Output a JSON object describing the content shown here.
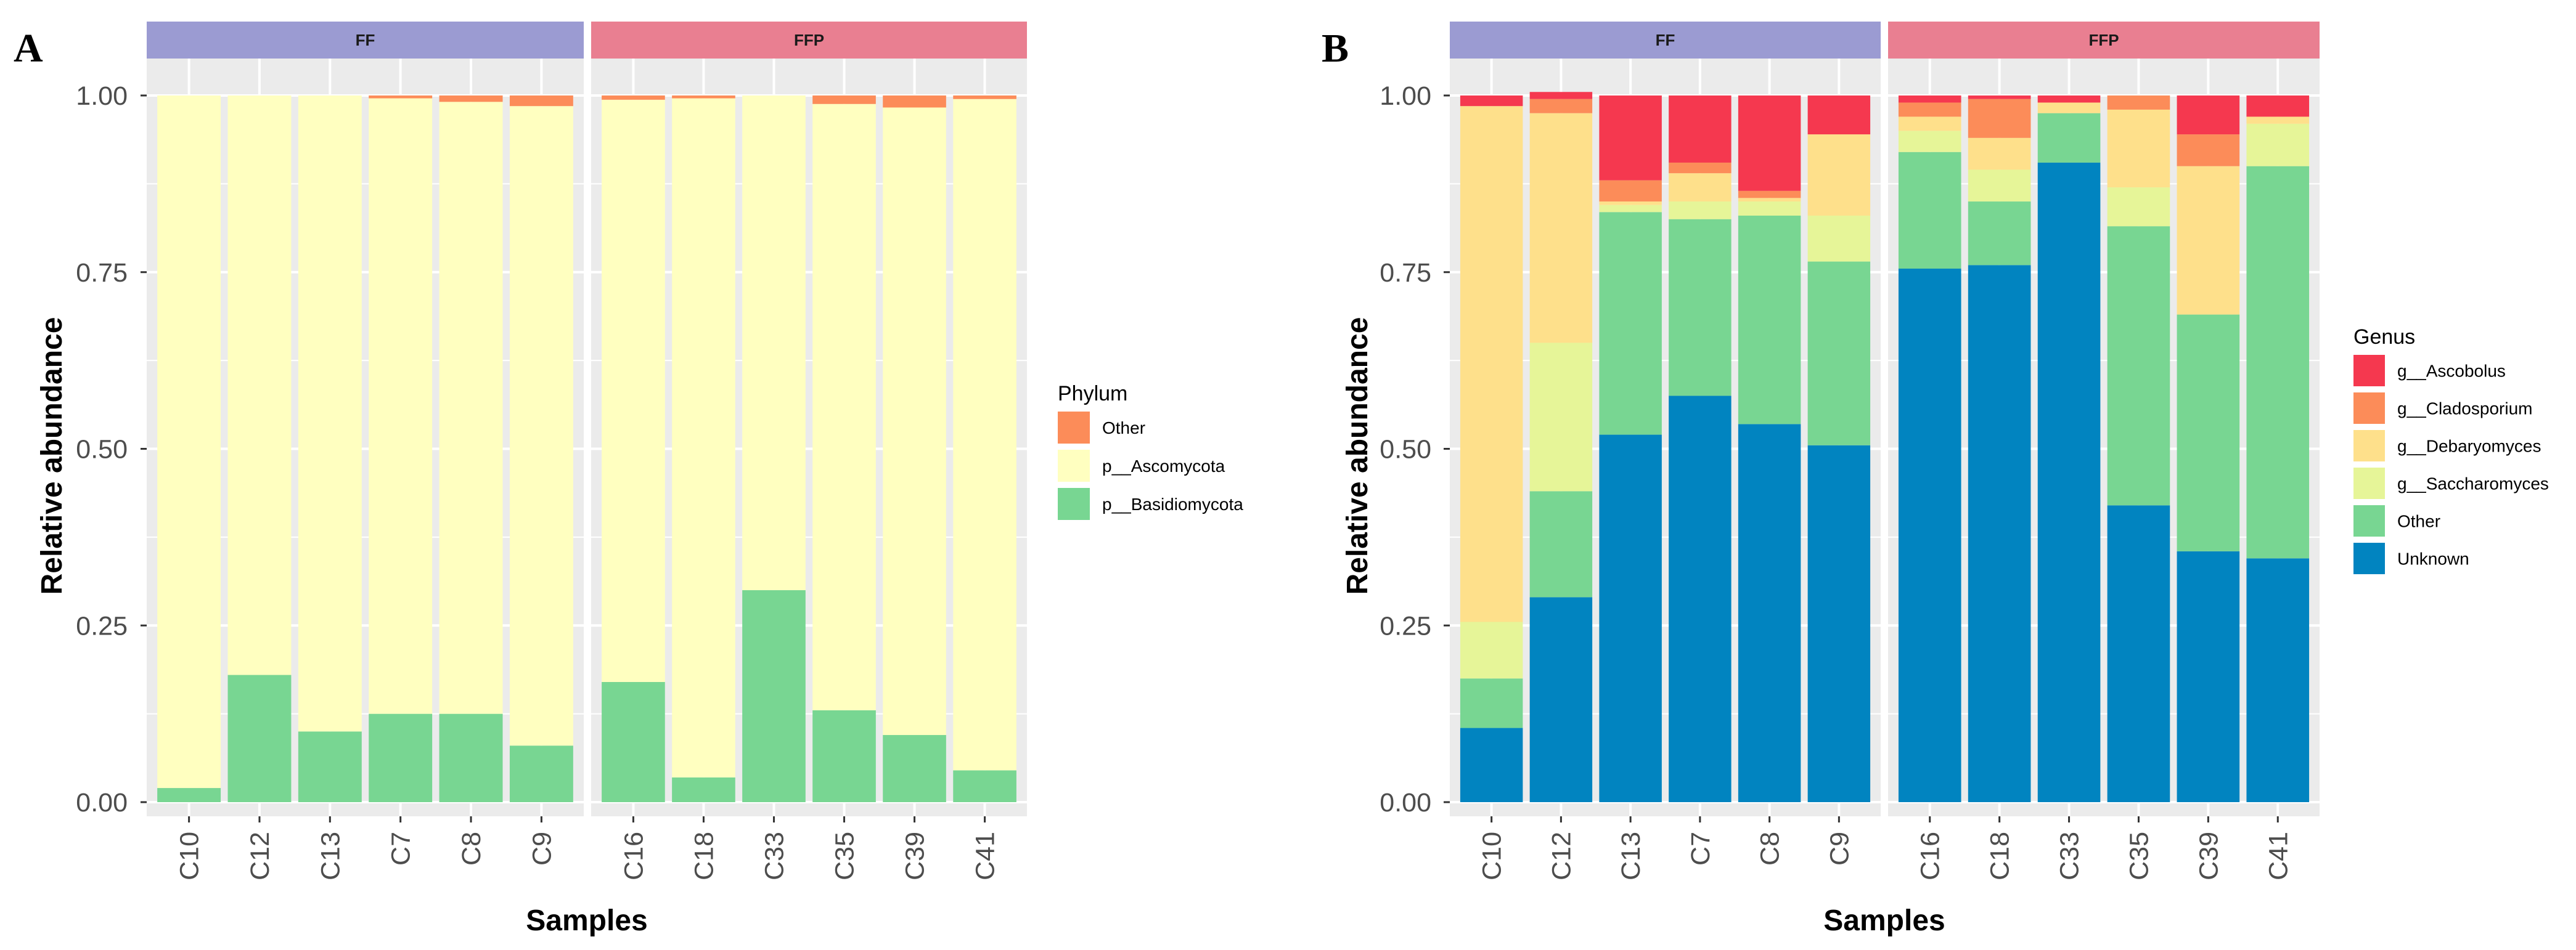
{
  "chart_data": [
    {
      "type": "bar",
      "stacked": true,
      "panel_label": "A",
      "facets": [
        {
          "label": "FF",
          "color": "#9b9bd2",
          "categories": [
            "C10",
            "C12",
            "C13",
            "C7",
            "C8",
            "C9"
          ]
        },
        {
          "label": "FFP",
          "color": "#e97f91",
          "categories": [
            "C16",
            "C18",
            "C33",
            "C35",
            "C39",
            "C41"
          ]
        }
      ],
      "xlabel": "Samples",
      "ylabel": "Relative abundance",
      "ylim": [
        0,
        1
      ],
      "yticks": [
        "0.00",
        "0.25",
        "0.50",
        "0.75",
        "1.00"
      ],
      "grid": true,
      "legend": {
        "title": "Phylum",
        "position": "right"
      },
      "series": [
        {
          "name": "p__Basidiomycota",
          "color": "#78d692",
          "values": [
            0.02,
            0.18,
            0.1,
            0.125,
            0.125,
            0.08,
            0.17,
            0.035,
            0.3,
            0.13,
            0.095,
            0.045
          ]
        },
        {
          "name": "p__Ascomycota",
          "color": "#ffffc0",
          "values": [
            0.98,
            0.82,
            0.9,
            0.871,
            0.866,
            0.905,
            0.824,
            0.961,
            0.7,
            0.858,
            0.888,
            0.95
          ]
        },
        {
          "name": "Other",
          "color": "#fc8c59",
          "values": [
            0.0,
            0.0,
            0.0,
            0.004,
            0.009,
            0.015,
            0.006,
            0.004,
            0.0,
            0.012,
            0.017,
            0.005
          ]
        }
      ],
      "legend_order": [
        "Other",
        "p__Ascomycota",
        "p__Basidiomycota"
      ]
    },
    {
      "type": "bar",
      "stacked": true,
      "panel_label": "B",
      "facets": [
        {
          "label": "FF",
          "color": "#9b9bd2",
          "categories": [
            "C10",
            "C12",
            "C13",
            "C7",
            "C8",
            "C9"
          ]
        },
        {
          "label": "FFP",
          "color": "#e97f91",
          "categories": [
            "C16",
            "C18",
            "C33",
            "C35",
            "C39",
            "C41"
          ]
        }
      ],
      "xlabel": "Samples",
      "ylabel": "Relative abundance",
      "ylim": [
        0,
        1
      ],
      "yticks": [
        "0.00",
        "0.25",
        "0.50",
        "0.75",
        "1.00"
      ],
      "grid": true,
      "legend": {
        "title": "Genus",
        "position": "right"
      },
      "series": [
        {
          "name": "Unknown",
          "color": "#0184c0",
          "values": [
            0.105,
            0.29,
            0.52,
            0.575,
            0.535,
            0.505,
            0.755,
            0.76,
            0.905,
            0.42,
            0.355,
            0.345
          ]
        },
        {
          "name": "Other",
          "color": "#78d692",
          "values": [
            0.07,
            0.15,
            0.315,
            0.25,
            0.295,
            0.26,
            0.165,
            0.09,
            0.07,
            0.395,
            0.335,
            0.555
          ]
        },
        {
          "name": "g__Saccharomyces",
          "color": "#e6f598",
          "values": [
            0.08,
            0.21,
            0.01,
            0.025,
            0.02,
            0.065,
            0.03,
            0.045,
            0.0,
            0.055,
            0.0,
            0.06
          ]
        },
        {
          "name": "g__Debaryomyces",
          "color": "#fee08b",
          "values": [
            0.73,
            0.325,
            0.005,
            0.04,
            0.005,
            0.115,
            0.02,
            0.045,
            0.015,
            0.11,
            0.21,
            0.01
          ]
        },
        {
          "name": "g__Cladosporium",
          "color": "#fc8c59",
          "values": [
            0.0,
            0.02,
            0.03,
            0.015,
            0.01,
            0.0,
            0.02,
            0.055,
            0.0,
            0.02,
            0.045,
            0.0
          ]
        },
        {
          "name": "g__Ascobolus",
          "color": "#f5384f",
          "values": [
            0.015,
            0.01,
            0.12,
            0.095,
            0.135,
            0.055,
            0.01,
            0.005,
            0.01,
            0.0,
            0.055,
            0.03
          ]
        }
      ],
      "legend_order": [
        "g__Ascobolus",
        "g__Cladosporium",
        "g__Debaryomyces",
        "g__Saccharomyces",
        "Other",
        "Unknown"
      ]
    }
  ]
}
